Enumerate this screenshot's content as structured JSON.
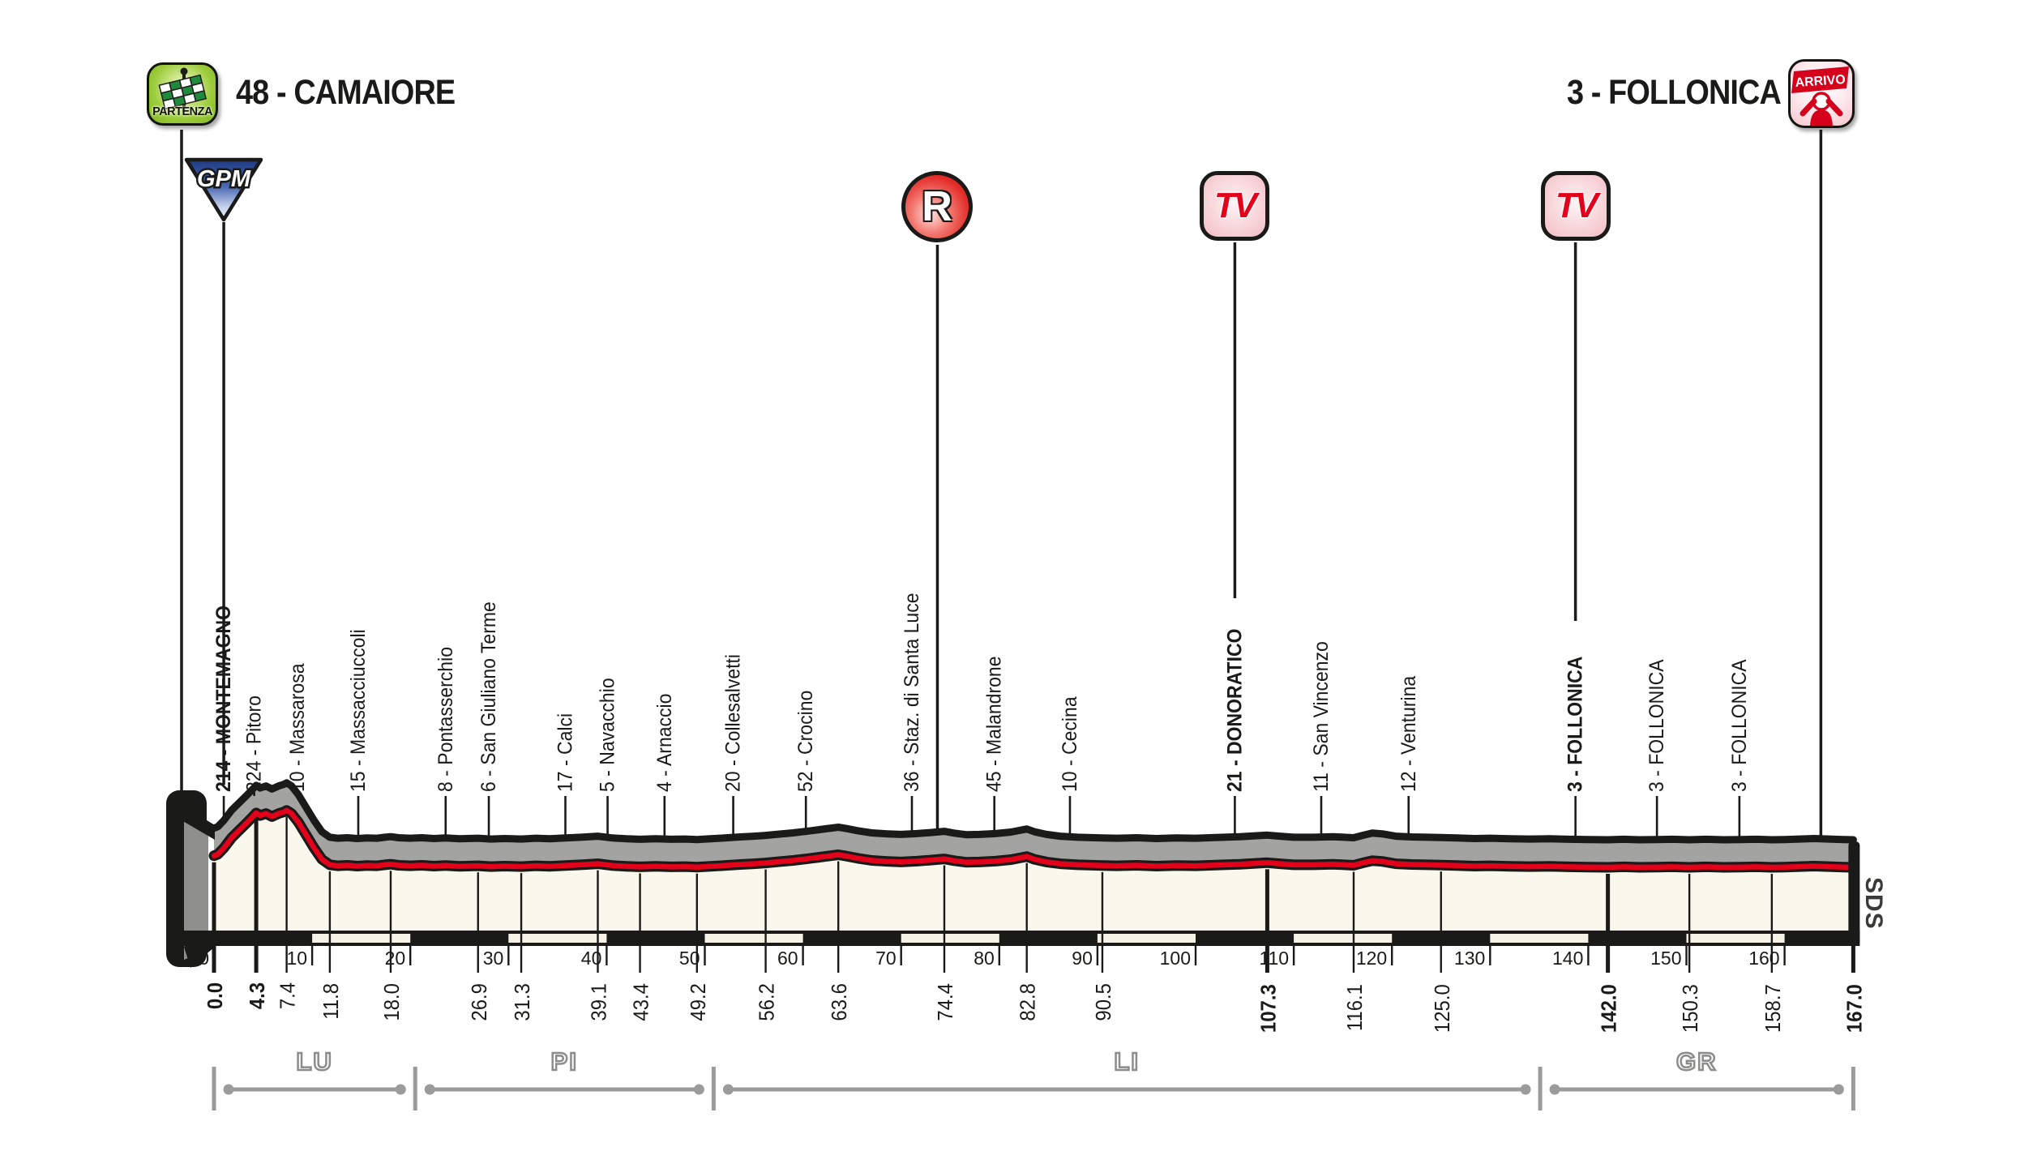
{
  "header": {
    "start_title": "48 - CAMAIORE",
    "finish_title": "3 - FOLLONICA",
    "partenza_label": "PARTENZA",
    "arrivo_label": "ARRIVO"
  },
  "markers": {
    "gpm": "GPM",
    "refreshment": "R",
    "tv": "TV"
  },
  "credit": "SDS",
  "chart_data": {
    "type": "area",
    "x_unit": "km",
    "xlim": [
      0,
      167
    ],
    "start": {
      "name": "CAMAIORE",
      "elevation_m": 48
    },
    "finish": {
      "name": "FOLLONICA",
      "elevation_m": 3
    },
    "x_scale_labels": [
      0,
      10,
      20,
      30,
      40,
      50,
      60,
      70,
      80,
      90,
      100,
      110,
      120,
      130,
      140,
      150,
      160
    ],
    "waypoints": [
      {
        "km": 4.3,
        "label": "214 - MONTEMAGNO",
        "bold": true
      },
      {
        "km": 7.4,
        "label": "224 - Pitoro",
        "bold": false
      },
      {
        "km": 11.8,
        "label": "10 - Massarosa",
        "bold": false
      },
      {
        "km": 18.0,
        "label": "15 - Massacciuccoli",
        "bold": false
      },
      {
        "km": 26.9,
        "label": "8 - Pontasserchio",
        "bold": false
      },
      {
        "km": 31.3,
        "label": "6 - San Giuliano Terme",
        "bold": false
      },
      {
        "km": 39.1,
        "label": "17 - Calci",
        "bold": false
      },
      {
        "km": 43.4,
        "label": "5 - Navacchio",
        "bold": false
      },
      {
        "km": 49.2,
        "label": "4 - Arnaccio",
        "bold": false
      },
      {
        "km": 56.2,
        "label": "20 - Collesalvetti",
        "bold": false
      },
      {
        "km": 63.6,
        "label": "52 - Crocino",
        "bold": false
      },
      {
        "km": 74.4,
        "label": "36 - Staz. di Santa Luce",
        "bold": false
      },
      {
        "km": 82.8,
        "label": "45 - Malandrone",
        "bold": false
      },
      {
        "km": 90.5,
        "label": "10 - Cecina",
        "bold": false
      },
      {
        "km": 107.3,
        "label": "21 - DONORATICO",
        "bold": true
      },
      {
        "km": 116.1,
        "label": "11 - San Vincenzo",
        "bold": false
      },
      {
        "km": 125.0,
        "label": "12 - Venturina",
        "bold": false
      },
      {
        "km": 142.0,
        "label": "3 - FOLLONICA",
        "bold": true
      },
      {
        "km": 150.3,
        "label": "3 - FOLLONICA",
        "bold": false
      },
      {
        "km": 158.7,
        "label": "3 - FOLLONICA",
        "bold": false
      }
    ],
    "km_tick_labels": [
      {
        "km": 0.0,
        "text": "0.0",
        "bold": true
      },
      {
        "km": 4.3,
        "text": "4.3",
        "bold": true
      },
      {
        "km": 7.4,
        "text": "7.4",
        "bold": false
      },
      {
        "km": 11.8,
        "text": "11.8",
        "bold": false
      },
      {
        "km": 18.0,
        "text": "18.0",
        "bold": false
      },
      {
        "km": 26.9,
        "text": "26.9",
        "bold": false
      },
      {
        "km": 31.3,
        "text": "31.3",
        "bold": false
      },
      {
        "km": 39.1,
        "text": "39.1",
        "bold": false
      },
      {
        "km": 43.4,
        "text": "43.4",
        "bold": false
      },
      {
        "km": 49.2,
        "text": "49.2",
        "bold": false
      },
      {
        "km": 56.2,
        "text": "56.2",
        "bold": false
      },
      {
        "km": 63.6,
        "text": "63.6",
        "bold": false
      },
      {
        "km": 74.4,
        "text": "74.4",
        "bold": false
      },
      {
        "km": 82.8,
        "text": "82.8",
        "bold": false
      },
      {
        "km": 90.5,
        "text": "90.5",
        "bold": false
      },
      {
        "km": 107.3,
        "text": "107.3",
        "bold": true
      },
      {
        "km": 116.1,
        "text": "116.1",
        "bold": false
      },
      {
        "km": 125.0,
        "text": "125.0",
        "bold": false
      },
      {
        "km": 142.0,
        "text": "142.0",
        "bold": true
      },
      {
        "km": 150.3,
        "text": "150.3",
        "bold": false
      },
      {
        "km": 158.7,
        "text": "158.7",
        "bold": false
      },
      {
        "km": 167.0,
        "text": "167.0",
        "bold": true
      }
    ],
    "profile_km_elev": [
      [
        0,
        48
      ],
      [
        0.4,
        54
      ],
      [
        1,
        78
      ],
      [
        1.8,
        118
      ],
      [
        2.6,
        148
      ],
      [
        3.4,
        178
      ],
      [
        4.0,
        202
      ],
      [
        4.3,
        214
      ],
      [
        4.7,
        204
      ],
      [
        5.3,
        212
      ],
      [
        5.9,
        200
      ],
      [
        6.6,
        212
      ],
      [
        7.1,
        218
      ],
      [
        7.4,
        224
      ],
      [
        7.9,
        212
      ],
      [
        8.6,
        178
      ],
      [
        9.4,
        128
      ],
      [
        10.2,
        78
      ],
      [
        11,
        34
      ],
      [
        11.8,
        13
      ],
      [
        12.6,
        9
      ],
      [
        13.6,
        11
      ],
      [
        14.6,
        8
      ],
      [
        15.6,
        10
      ],
      [
        16.6,
        9
      ],
      [
        17.4,
        13
      ],
      [
        18,
        15
      ],
      [
        18.8,
        11
      ],
      [
        20,
        9
      ],
      [
        21.2,
        11
      ],
      [
        22.4,
        8
      ],
      [
        23.6,
        10
      ],
      [
        25,
        7
      ],
      [
        26.9,
        9
      ],
      [
        28.2,
        6
      ],
      [
        29.6,
        8
      ],
      [
        31.3,
        6
      ],
      [
        32.8,
        9
      ],
      [
        34.2,
        7
      ],
      [
        35.8,
        10
      ],
      [
        37.4,
        13
      ],
      [
        39.1,
        17
      ],
      [
        40.6,
        10
      ],
      [
        42,
        7
      ],
      [
        43.4,
        5
      ],
      [
        45,
        7
      ],
      [
        46.6,
        5
      ],
      [
        48,
        6
      ],
      [
        49.2,
        4
      ],
      [
        50.6,
        7
      ],
      [
        52,
        10
      ],
      [
        53.6,
        14
      ],
      [
        55,
        17
      ],
      [
        56.2,
        20
      ],
      [
        57.6,
        25
      ],
      [
        59,
        30
      ],
      [
        60.6,
        37
      ],
      [
        62,
        44
      ],
      [
        63.6,
        52
      ],
      [
        64.4,
        47
      ],
      [
        65.6,
        38
      ],
      [
        67,
        30
      ],
      [
        68.6,
        26
      ],
      [
        70,
        24
      ],
      [
        71.6,
        27
      ],
      [
        73,
        31
      ],
      [
        74.4,
        36
      ],
      [
        75.4,
        29
      ],
      [
        76.6,
        23
      ],
      [
        78,
        24
      ],
      [
        79.6,
        27
      ],
      [
        81.2,
        33
      ],
      [
        82.8,
        45
      ],
      [
        83.6,
        34
      ],
      [
        84.8,
        24
      ],
      [
        86.2,
        17
      ],
      [
        88,
        13
      ],
      [
        90.5,
        10
      ],
      [
        92,
        9
      ],
      [
        94,
        11
      ],
      [
        96,
        8
      ],
      [
        98,
        10
      ],
      [
        100,
        9
      ],
      [
        102,
        12
      ],
      [
        104.5,
        15
      ],
      [
        107.3,
        21
      ],
      [
        108.6,
        17
      ],
      [
        110,
        13
      ],
      [
        112,
        13
      ],
      [
        114,
        15
      ],
      [
        116.1,
        11
      ],
      [
        117,
        20
      ],
      [
        118,
        29
      ],
      [
        119,
        26
      ],
      [
        120.4,
        17
      ],
      [
        122,
        14
      ],
      [
        123.6,
        13
      ],
      [
        125,
        12
      ],
      [
        126.6,
        10
      ],
      [
        128.4,
        8
      ],
      [
        130,
        9
      ],
      [
        132,
        7
      ],
      [
        134,
        6
      ],
      [
        136,
        7
      ],
      [
        138,
        5
      ],
      [
        140,
        4
      ],
      [
        142,
        3
      ],
      [
        143.6,
        5
      ],
      [
        145.2,
        3
      ],
      [
        147,
        4
      ],
      [
        148.6,
        5
      ],
      [
        150.3,
        3
      ],
      [
        152,
        5
      ],
      [
        153.8,
        3
      ],
      [
        155.6,
        4
      ],
      [
        157.2,
        5
      ],
      [
        158.7,
        3
      ],
      [
        160,
        4
      ],
      [
        161.5,
        6
      ],
      [
        163,
        8
      ],
      [
        164.5,
        6
      ],
      [
        166,
        4
      ],
      [
        167,
        3
      ]
    ],
    "provinces": [
      {
        "label": "LU",
        "from_km": 0,
        "to_km": 20.5
      },
      {
        "label": "PI",
        "from_km": 20.5,
        "to_km": 50.9
      },
      {
        "label": "LI",
        "from_km": 50.9,
        "to_km": 135.1
      },
      {
        "label": "GR",
        "from_km": 135.1,
        "to_km": 167
      }
    ],
    "route_markers": [
      {
        "type": "partenza",
        "km": 0
      },
      {
        "type": "gpm",
        "km": 4.3
      },
      {
        "type": "refreshment_r",
        "km": 77
      },
      {
        "type": "tv",
        "km": 107.3
      },
      {
        "type": "tv",
        "km": 142.0
      },
      {
        "type": "arrivo",
        "km": 167
      }
    ],
    "colors": {
      "red_line": "#e2001a",
      "outline_black": "#1a1a18",
      "profile_fill": "#faf7ec",
      "band_gray": "#a3a3a2",
      "province_gray": "#9c9b9b",
      "gpm_blue": "#24418c",
      "tv_pink": "#f2bcc4",
      "partenza_green": "#8bc32c"
    }
  }
}
